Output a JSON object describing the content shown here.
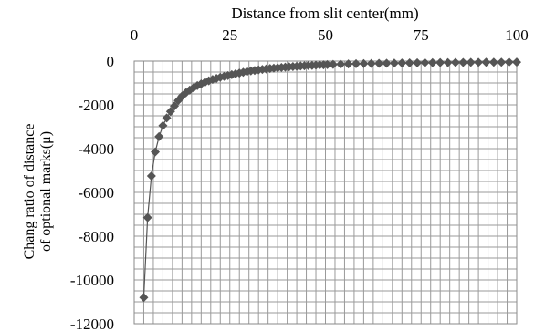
{
  "chart_data": {
    "type": "scatter",
    "xlabel": "Distance from slit center(mm)",
    "ylabel_lines": [
      "Chang ratio of distance",
      "of optional marks(μ)"
    ],
    "xlim": [
      0,
      100
    ],
    "ylim": [
      -12000,
      0
    ],
    "x_ticks": [
      0,
      25,
      50,
      75,
      100
    ],
    "y_ticks": [
      0,
      -2000,
      -4000,
      -6000,
      -8000,
      -10000,
      -12000
    ],
    "x_axis_position": "top",
    "grid": true,
    "marker": "diamond",
    "series": [
      {
        "x": [
          2.5,
          3.5,
          4.5,
          5.5,
          6.5,
          7.5,
          8.5,
          9.5,
          10.5,
          11.5,
          12.5,
          13.5,
          14.5,
          15.5,
          16.5,
          17.5,
          18.5,
          19.5,
          20.5,
          21.5,
          22.5,
          23.5,
          24.5,
          25.5,
          26.5,
          27.5,
          28.5,
          29.5,
          30.5,
          31.5,
          32.5,
          33.5,
          34.5,
          35.5,
          36.5,
          37.5,
          38.5,
          39.5,
          40.5,
          41.5,
          42.5,
          43.5,
          44.5,
          45.5,
          46.5,
          47.5,
          48.5,
          49.5,
          50.5,
          52,
          54,
          56,
          58,
          60,
          62,
          64,
          66,
          68,
          70,
          72,
          74,
          76,
          78,
          80,
          82,
          84,
          86,
          88,
          90,
          92,
          94,
          96,
          98,
          100
        ],
        "y": [
          -10800,
          -7150,
          -5250,
          -4150,
          -3450,
          -2950,
          -2600,
          -2300,
          -2050,
          -1800,
          -1600,
          -1450,
          -1330,
          -1220,
          -1120,
          -1040,
          -970,
          -900,
          -840,
          -790,
          -740,
          -700,
          -660,
          -620,
          -580,
          -545,
          -510,
          -480,
          -450,
          -425,
          -400,
          -378,
          -358,
          -340,
          -322,
          -305,
          -290,
          -276,
          -262,
          -250,
          -238,
          -226,
          -215,
          -205,
          -196,
          -187,
          -178,
          -170,
          -163,
          -150,
          -140,
          -130,
          -122,
          -115,
          -108,
          -102,
          -97,
          -92,
          -87,
          -83,
          -79,
          -75,
          -72,
          -69,
          -66,
          -63,
          -60,
          -58,
          -56,
          -54,
          -52,
          -50,
          -48,
          -46
        ]
      }
    ]
  }
}
